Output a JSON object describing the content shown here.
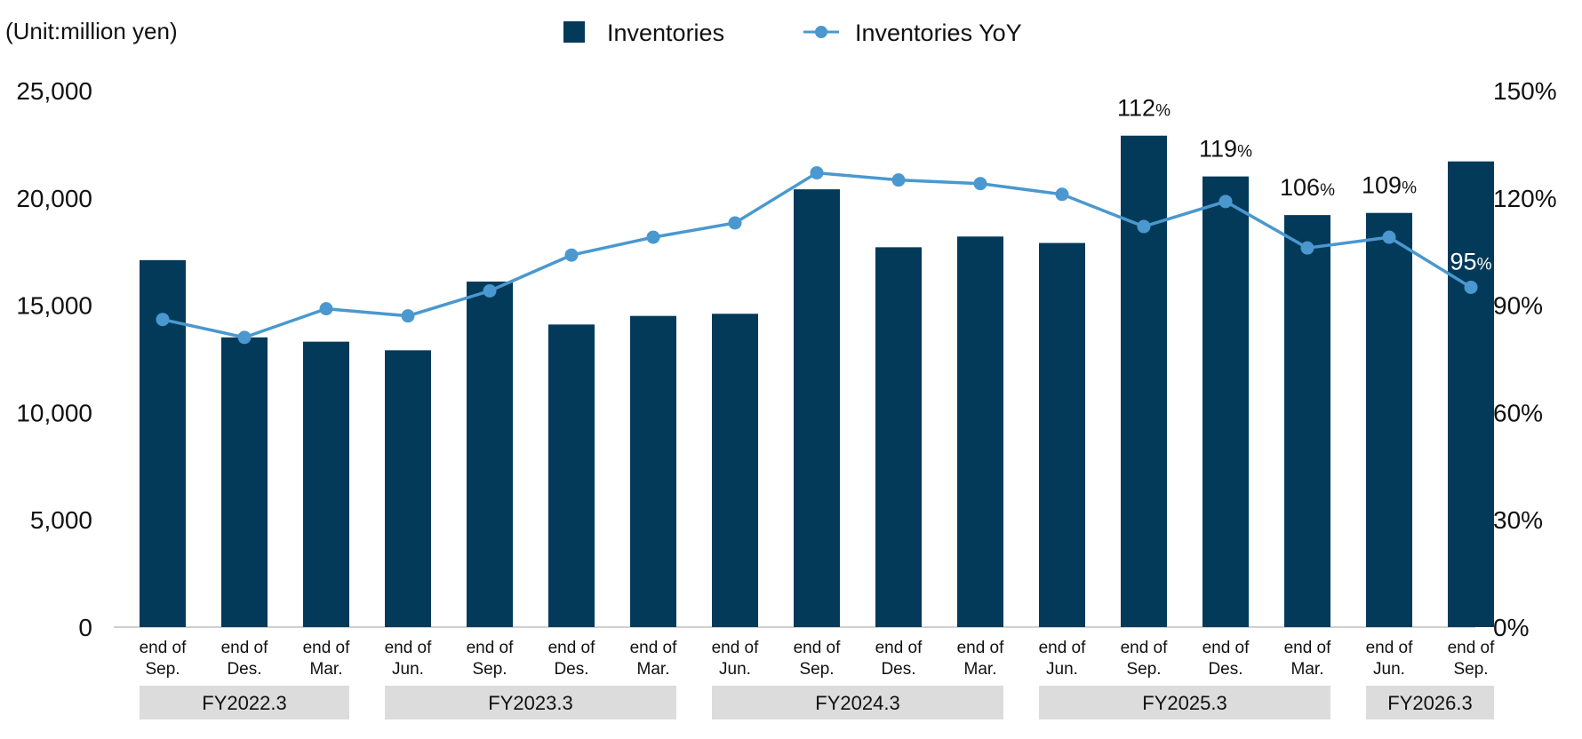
{
  "unit_label": "(Unit:million yen)",
  "legend": {
    "bar_label": "Inventories",
    "line_label": "Inventories YoY"
  },
  "colors": {
    "bar": "#033a5a",
    "line": "#4a98cf",
    "axis": "#d0d0d0",
    "fy_box": "#dcdcdc",
    "text": "#111111"
  },
  "chart_data": {
    "type": "bar",
    "categories": [
      [
        "end of",
        "Sep."
      ],
      [
        "end of",
        "Des."
      ],
      [
        "end of",
        "Mar."
      ],
      [
        "end of",
        "Jun."
      ],
      [
        "end of",
        "Sep."
      ],
      [
        "end of",
        "Des."
      ],
      [
        "end of",
        "Mar."
      ],
      [
        "end of",
        "Jun."
      ],
      [
        "end of",
        "Sep."
      ],
      [
        "end of",
        "Des."
      ],
      [
        "end of",
        "Mar."
      ],
      [
        "end of",
        "Jun."
      ],
      [
        "end of",
        "Sep."
      ],
      [
        "end of",
        "Des."
      ],
      [
        "end of",
        "Mar."
      ],
      [
        "end of",
        "Jun."
      ],
      [
        "end of",
        "Sep."
      ]
    ],
    "series": [
      {
        "name": "Inventories",
        "type": "bar",
        "axis": "left",
        "values": [
          17100,
          13500,
          13300,
          12900,
          16100,
          14100,
          14500,
          14600,
          20400,
          17700,
          18200,
          17900,
          22900,
          21000,
          19200,
          19300,
          21700
        ]
      },
      {
        "name": "Inventories YoY",
        "type": "line",
        "axis": "right",
        "values": [
          86,
          81,
          89,
          87,
          94,
          104,
          109,
          113,
          127,
          125,
          124,
          121,
          112,
          119,
          106,
          109,
          95
        ]
      }
    ],
    "data_labels": [
      {
        "index": 12,
        "value": "112",
        "suffix": "%",
        "over": "bar"
      },
      {
        "index": 13,
        "value": "119",
        "suffix": "%",
        "over": "bar"
      },
      {
        "index": 14,
        "value": "106",
        "suffix": "%",
        "over": "bar"
      },
      {
        "index": 15,
        "value": "109",
        "suffix": "%",
        "over": "bar"
      },
      {
        "index": 16,
        "value": "95",
        "suffix": "%",
        "over": "point"
      }
    ],
    "fiscal_years": [
      {
        "label": "FY2022.3",
        "from": 0,
        "to": 2
      },
      {
        "label": "FY2023.3",
        "from": 3,
        "to": 6
      },
      {
        "label": "FY2024.3",
        "from": 7,
        "to": 10
      },
      {
        "label": "FY2025.3",
        "from": 11,
        "to": 14
      },
      {
        "label": "FY2026.3",
        "from": 15,
        "to": 16
      }
    ],
    "ylim_left": [
      0,
      25000
    ],
    "yticks_left": [
      "0",
      "5,000",
      "10,000",
      "15,000",
      "20,000",
      "25,000"
    ],
    "ylim_right": [
      0,
      150
    ],
    "yticks_right": [
      "0%",
      "30%",
      "60%",
      "90%",
      "120%",
      "150%"
    ],
    "grid": false,
    "legend_position": "top-center"
  }
}
